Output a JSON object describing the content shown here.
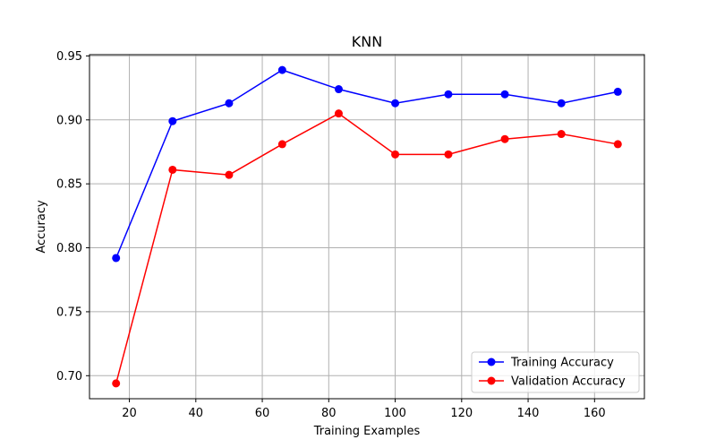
{
  "chart_data": {
    "type": "line",
    "title": "KNN",
    "xlabel": "Training Examples",
    "ylabel": "Accuracy",
    "xlim": [
      8,
      175
    ],
    "ylim": [
      0.682,
      0.951
    ],
    "xticks": [
      20,
      40,
      60,
      80,
      100,
      120,
      140,
      160
    ],
    "yticks": [
      0.7,
      0.75,
      0.8,
      0.85,
      0.9,
      0.95
    ],
    "grid": true,
    "legend_position": "lower-right",
    "x": [
      16,
      33,
      50,
      66,
      83,
      100,
      116,
      133,
      150,
      167
    ],
    "series": [
      {
        "name": "Training Accuracy",
        "color": "#0000ff",
        "values": [
          0.792,
          0.899,
          0.913,
          0.939,
          0.924,
          0.913,
          0.92,
          0.92,
          0.913,
          0.922
        ]
      },
      {
        "name": "Validation Accuracy",
        "color": "#ff0000",
        "values": [
          0.694,
          0.861,
          0.857,
          0.881,
          0.905,
          0.873,
          0.873,
          0.885,
          0.889,
          0.881
        ]
      }
    ]
  }
}
